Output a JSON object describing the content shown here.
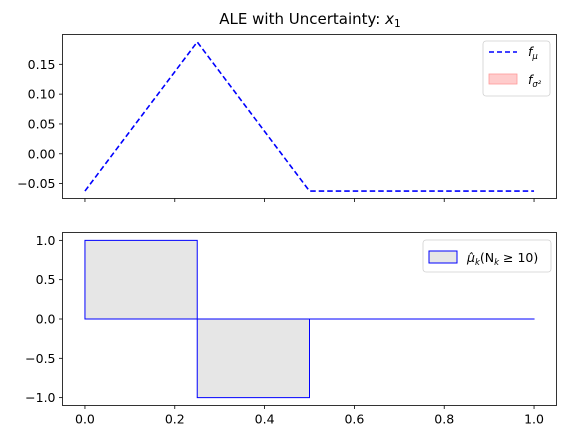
{
  "chart_data": [
    {
      "type": "line",
      "title": "ALE with Uncertainty: ",
      "title_var": "x",
      "title_sub": "1",
      "x": [
        0.0,
        0.25,
        0.5,
        1.0
      ],
      "series": [
        {
          "name": "f",
          "name_sub": "μ",
          "values": [
            -0.0625,
            0.1875,
            -0.0625,
            -0.0625
          ],
          "color": "#0000ff",
          "style": "dashed"
        },
        {
          "name": "f",
          "name_sub": "σ²",
          "values": [
            0.0,
            0.0,
            0.0,
            0.0
          ],
          "color": "#ff9999",
          "style": "band"
        }
      ],
      "xlim": [
        -0.05,
        1.05
      ],
      "ylim": [
        -0.075,
        0.2
      ],
      "yticks": [
        "-0.05",
        "0.00",
        "0.05",
        "0.10",
        "0.15"
      ],
      "ytick_values": [
        -0.05,
        0.0,
        0.05,
        0.1,
        0.15
      ],
      "xticks": [
        0.0,
        0.2,
        0.4,
        0.6,
        0.8,
        1.0
      ],
      "grid": false,
      "legend": "top-right"
    },
    {
      "type": "bar",
      "series": [
        {
          "name": "μ̂",
          "name_sub": "k",
          "name_suffix": "(N",
          "name_suffix_sub": "k",
          "name_tail": " ≥ 10)",
          "bins": [
            [
              0.0,
              0.25
            ],
            [
              0.25,
              0.5
            ],
            [
              0.5,
              1.0
            ]
          ],
          "values": [
            1.0,
            -1.0,
            0.0
          ],
          "edge_color": "#0000ff",
          "fill_color": "#e6e6e6"
        }
      ],
      "xlim": [
        -0.05,
        1.05
      ],
      "ylim": [
        -1.1,
        1.1
      ],
      "yticks": [
        "−1.0",
        "−0.5",
        "0.0",
        "0.5",
        "1.0"
      ],
      "ytick_values": [
        -1.0,
        -0.5,
        0.0,
        0.5,
        1.0
      ],
      "xticks": [
        "0.0",
        "0.2",
        "0.4",
        "0.6",
        "0.8",
        "1.0"
      ],
      "xtick_values": [
        0.0,
        0.2,
        0.4,
        0.6,
        0.8,
        1.0
      ],
      "grid": false,
      "legend": "top-right"
    }
  ]
}
